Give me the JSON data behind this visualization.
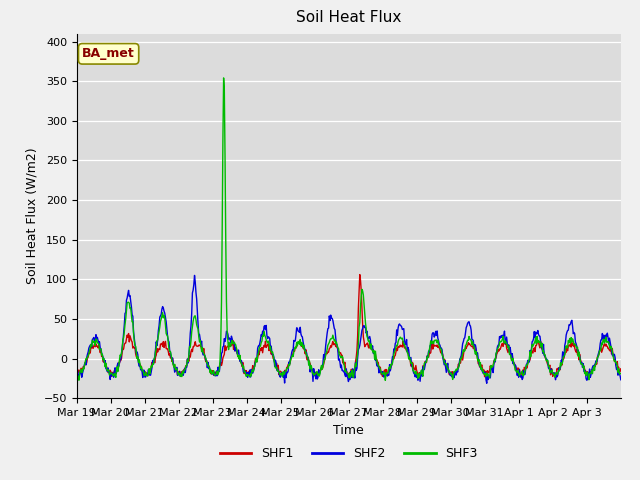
{
  "title": "Soil Heat Flux",
  "xlabel": "Time",
  "ylabel": "Soil Heat Flux (W/m2)",
  "ylim": [
    -50,
    410
  ],
  "yticks": [
    -50,
    0,
    50,
    100,
    150,
    200,
    250,
    300,
    350,
    400
  ],
  "legend_labels": [
    "SHF1",
    "SHF2",
    "SHF3"
  ],
  "legend_colors": [
    "#cc0000",
    "#0000dd",
    "#00bb00"
  ],
  "annotation_text": "BA_met",
  "annotation_fgcolor": "#880000",
  "annotation_bgcolor": "#ffffcc",
  "plot_bg_color": "#dcdcdc",
  "fig_bg_color": "#f0f0f0",
  "line_width": 1.0,
  "x_tick_labels": [
    "Mar 19",
    "Mar 20",
    "Mar 21",
    "Mar 22",
    "Mar 23",
    "Mar 24",
    "Mar 25",
    "Mar 26",
    "Mar 27",
    "Mar 28",
    "Mar 29",
    "Mar 30",
    "Mar 31",
    "Apr 1",
    "Apr 2",
    "Apr 3"
  ],
  "num_days": 16,
  "points_per_day": 48
}
